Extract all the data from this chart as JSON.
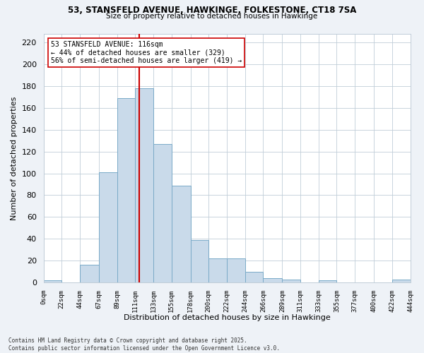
{
  "title_line1": "53, STANSFELD AVENUE, HAWKINGE, FOLKESTONE, CT18 7SA",
  "title_line2": "Size of property relative to detached houses in Hawkinge",
  "xlabel": "Distribution of detached houses by size in Hawkinge",
  "ylabel": "Number of detached properties",
  "bar_color": "#c9daea",
  "bar_edge_color": "#7aaac8",
  "bin_edges": [
    0,
    22,
    44,
    67,
    89,
    111,
    133,
    155,
    178,
    200,
    222,
    244,
    266,
    289,
    311,
    333,
    355,
    377,
    400,
    422,
    444
  ],
  "bin_labels": [
    "0sqm",
    "22sqm",
    "44sqm",
    "67sqm",
    "89sqm",
    "111sqm",
    "133sqm",
    "155sqm",
    "178sqm",
    "200sqm",
    "222sqm",
    "244sqm",
    "266sqm",
    "289sqm",
    "311sqm",
    "333sqm",
    "355sqm",
    "377sqm",
    "400sqm",
    "422sqm",
    "444sqm"
  ],
  "bar_heights": [
    2,
    0,
    16,
    101,
    169,
    178,
    127,
    89,
    39,
    22,
    22,
    10,
    4,
    3,
    0,
    2,
    0,
    0,
    0,
    3
  ],
  "property_size": 116,
  "vline_color": "#cc0000",
  "annotation_line1": "53 STANSFELD AVENUE: 116sqm",
  "annotation_line2": "← 44% of detached houses are smaller (329)",
  "annotation_line3": "56% of semi-detached houses are larger (419) →",
  "annotation_box_color": "#ffffff",
  "annotation_box_edge_color": "#cc0000",
  "ylim": [
    0,
    228
  ],
  "yticks": [
    0,
    20,
    40,
    60,
    80,
    100,
    120,
    140,
    160,
    180,
    200,
    220
  ],
  "footer_text": "Contains HM Land Registry data © Crown copyright and database right 2025.\nContains public sector information licensed under the Open Government Licence v3.0.",
  "background_color": "#eef2f7",
  "plot_background_color": "#ffffff",
  "grid_color": "#c0cdd8"
}
